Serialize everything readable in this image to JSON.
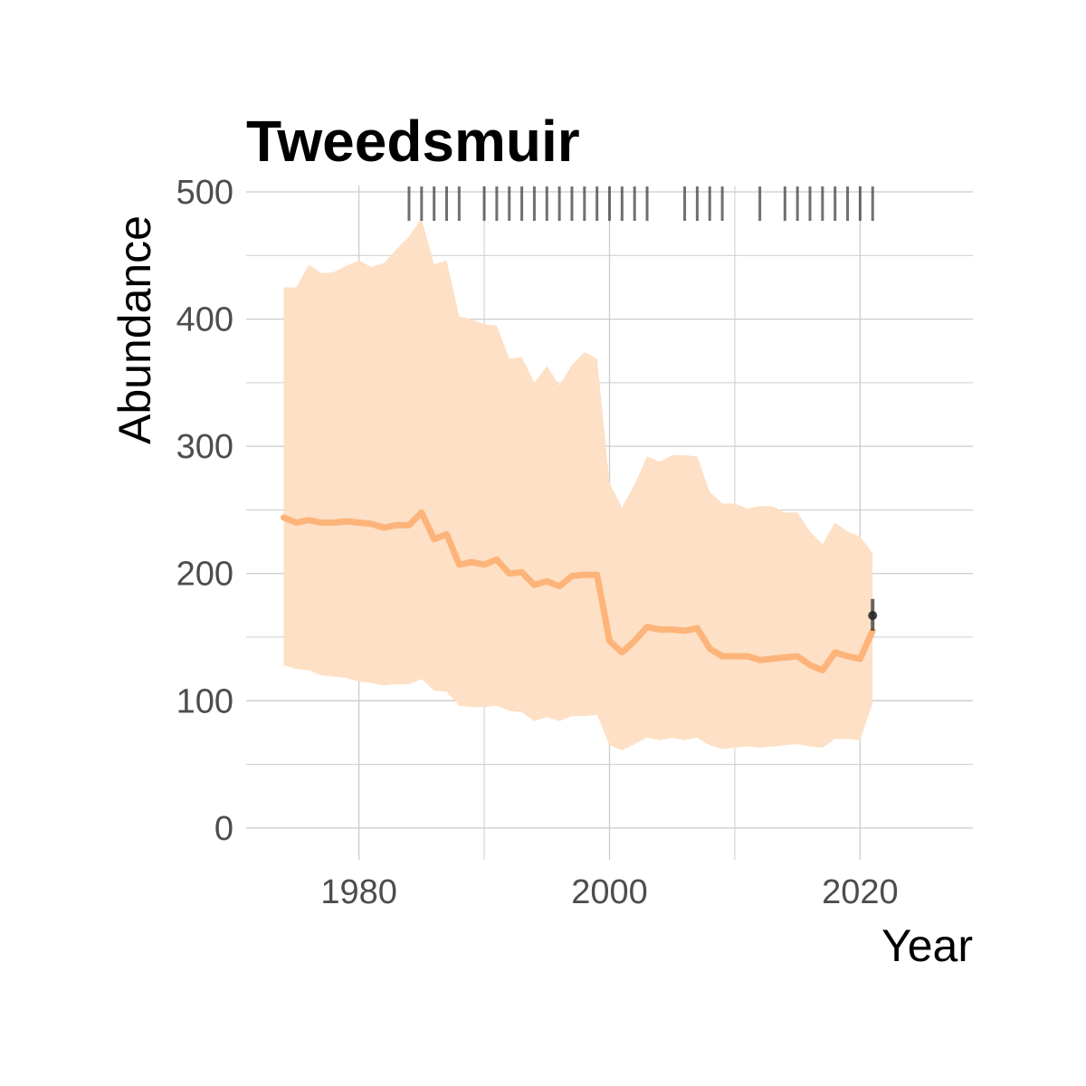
{
  "chart_data": {
    "type": "line",
    "title": "Tweedsmuir",
    "xlabel": "Year",
    "ylabel": "Abundance",
    "xlim": [
      1971,
      2029
    ],
    "ylim": [
      -25,
      505
    ],
    "x_ticks": [
      1980,
      2000,
      2020
    ],
    "y_ticks": [
      0,
      100,
      200,
      300,
      400,
      500
    ],
    "grid": true,
    "legend": "none",
    "line_color": "#fdb47a",
    "band_color": "#fde0c5",
    "mark_color": "#333333",
    "series": [
      {
        "x": [
          1974,
          1975,
          1976,
          1977,
          1978,
          1979,
          1980,
          1981,
          1982,
          1983,
          1984,
          1985,
          1986,
          1987,
          1988,
          1989,
          1990,
          1991,
          1992,
          1993,
          1994,
          1995,
          1996,
          1997,
          1998,
          1999,
          2000,
          2001,
          2002,
          2003,
          2004,
          2005,
          2006,
          2007,
          2008,
          2009,
          2010,
          2011,
          2012,
          2013,
          2014,
          2015,
          2016,
          2017,
          2018,
          2019,
          2020,
          2021
        ],
        "values": [
          244,
          240,
          242,
          240,
          240,
          241,
          240,
          239,
          236,
          238,
          238,
          248,
          227,
          231,
          207,
          209,
          207,
          211,
          200,
          201,
          191,
          194,
          190,
          198,
          199,
          199,
          147,
          138,
          147,
          158,
          156,
          156,
          155,
          157,
          141,
          135,
          135,
          135,
          132,
          133,
          134,
          135,
          128,
          124,
          138,
          135,
          133,
          155
        ],
        "upper": [
          425,
          425,
          443,
          436,
          437,
          442,
          446,
          441,
          444,
          455,
          465,
          479,
          443,
          446,
          402,
          400,
          396,
          395,
          369,
          370,
          350,
          363,
          348,
          364,
          374,
          369,
          271,
          252,
          270,
          292,
          288,
          293,
          293,
          292,
          264,
          255,
          255,
          251,
          253,
          253,
          248,
          248,
          233,
          223,
          240,
          233,
          229,
          216
        ],
        "lower": [
          128,
          125,
          124,
          120,
          119,
          118,
          115,
          114,
          112,
          113,
          113,
          117,
          108,
          107,
          96,
          95,
          95,
          96,
          92,
          91,
          84,
          87,
          84,
          88,
          88,
          89,
          65,
          61,
          66,
          71,
          69,
          71,
          69,
          71,
          65,
          62,
          63,
          64,
          63,
          64,
          65,
          66,
          64,
          63,
          70,
          70,
          69,
          98
        ]
      }
    ],
    "observation_years": [
      1984,
      1985,
      1986,
      1987,
      1988,
      1990,
      1991,
      1992,
      1993,
      1994,
      1995,
      1996,
      1997,
      1998,
      1999,
      2000,
      2001,
      2002,
      2003,
      2006,
      2007,
      2008,
      2009,
      2012,
      2014,
      2015,
      2016,
      2017,
      2018,
      2019,
      2020,
      2021
    ],
    "point": {
      "x": 2021,
      "y": 167,
      "ymin": 155,
      "ymax": 180
    }
  }
}
